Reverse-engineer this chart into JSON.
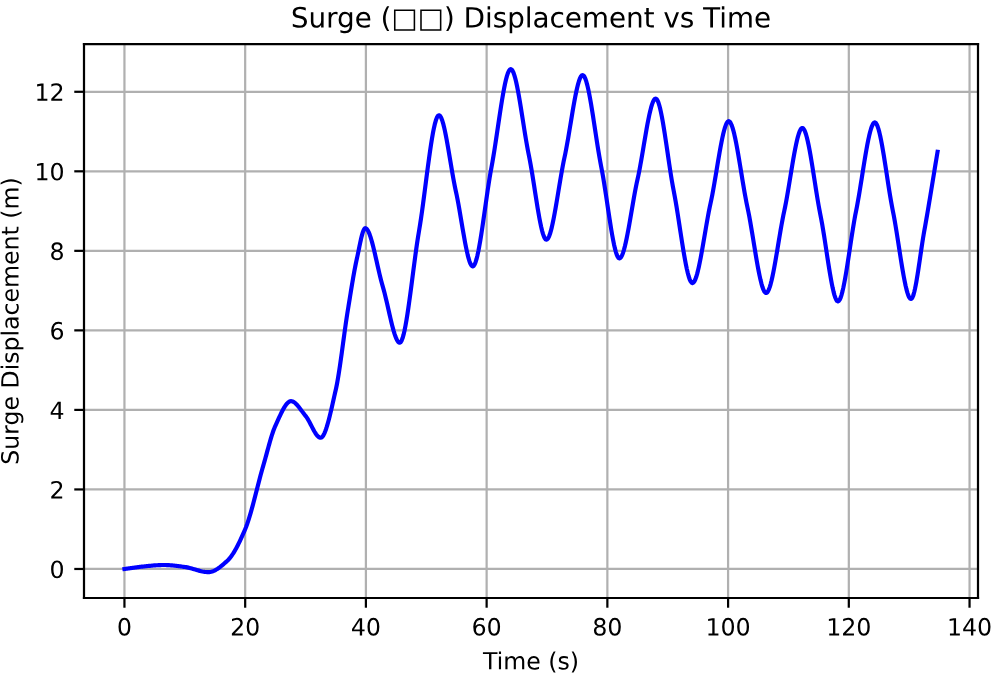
{
  "chart_data": {
    "type": "line",
    "title": "Surge (□□) Displacement vs Time",
    "xlabel": "Time (s)",
    "ylabel": "Surge Displacement (m)",
    "x": [
      0,
      3,
      6.5,
      10,
      13.9,
      17,
      20,
      23,
      25,
      27.6,
      30,
      32.5,
      35,
      37,
      38.5,
      39.9,
      42.8,
      45.6,
      48.8,
      52.1,
      54.9,
      57.7,
      60.8,
      64.0,
      67.0,
      69.9,
      72.9,
      75.9,
      79.0,
      82.0,
      85.0,
      88.0,
      91.0,
      94.1,
      97.1,
      100.1,
      103.2,
      106.3,
      109.3,
      112.3,
      115.3,
      118.2,
      121.2,
      124.3,
      127.3,
      130.3,
      132.5,
      134.7
    ],
    "series": [
      {
        "color": "#0000ff",
        "values": [
          0.0,
          0.06,
          0.1,
          0.05,
          -0.08,
          0.2,
          1.0,
          2.6,
          3.6,
          4.22,
          3.85,
          3.3,
          4.5,
          6.5,
          7.8,
          8.57,
          7.1,
          5.69,
          8.5,
          11.41,
          9.5,
          7.61,
          10.1,
          12.57,
          10.4,
          8.28,
          10.35,
          12.42,
          10.1,
          7.81,
          9.8,
          11.83,
          9.5,
          7.19,
          9.2,
          11.26,
          9.1,
          6.94,
          9.0,
          11.09,
          8.9,
          6.73,
          9.0,
          11.23,
          9.0,
          6.79,
          8.5,
          10.49
        ]
      }
    ],
    "xlim": [
      -6.7,
      141.4
    ],
    "ylim": [
      -0.73,
      13.2
    ],
    "xticks": [
      0,
      20,
      40,
      60,
      80,
      100,
      120,
      140
    ],
    "yticks": [
      0,
      2,
      4,
      6,
      8,
      10,
      12
    ],
    "grid": true,
    "legend": false,
    "line_style": "solid",
    "marker": "none"
  }
}
